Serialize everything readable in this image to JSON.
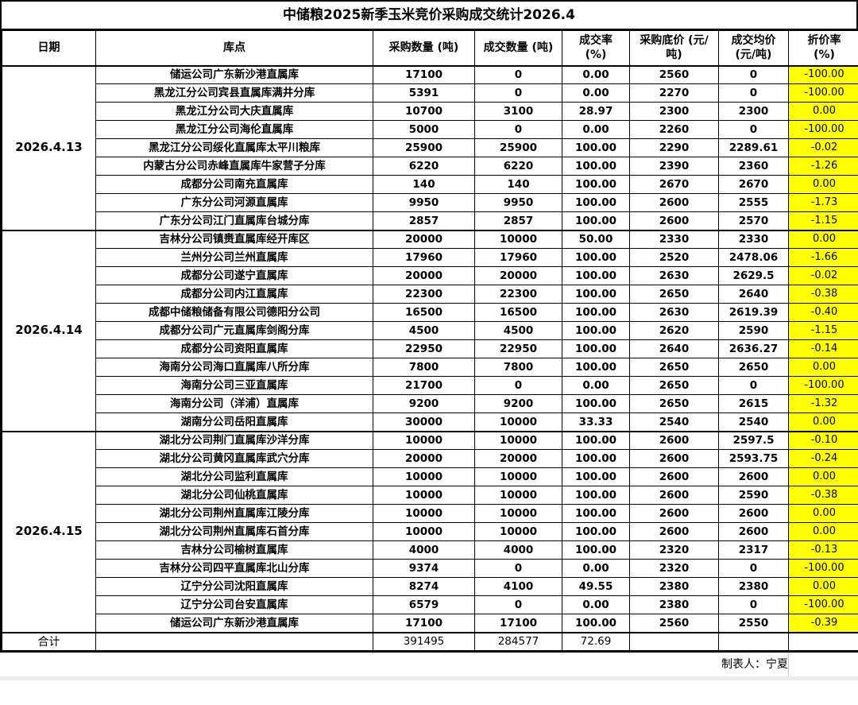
{
  "title": "中储粮2025新季玉米竞价采购成交统计2026.4",
  "colors": {
    "highlight_yellow": "#ffff00",
    "border_black": "#000000",
    "background_white": "#ffffff",
    "edge_gray": "#ececec"
  },
  "table": {
    "columns": [
      "日期",
      "库点",
      "采购数量 (吨)",
      "成交数量 (吨)",
      "成交率\n(%)",
      "采购底价 (元/\n吨)",
      "成交均价\n(元/吨)",
      "折价率\n(%)"
    ],
    "groups": [
      {
        "date": "2026.4.13",
        "rows": [
          [
            "储运公司广东新沙港直属库",
            "17100",
            "0",
            "0.00",
            "2560",
            "0",
            "-100.00"
          ],
          [
            "黑龙江分公司宾县直属库满井分库",
            "5391",
            "0",
            "0.00",
            "2270",
            "0",
            "-100.00"
          ],
          [
            "黑龙江分公司大庆直属库",
            "10700",
            "3100",
            "28.97",
            "2300",
            "2300",
            "0.00"
          ],
          [
            "黑龙江分公司海伦直属库",
            "5000",
            "0",
            "0.00",
            "2260",
            "0",
            "-100.00"
          ],
          [
            "黑龙江分公司绥化直属库太平川粮库",
            "25900",
            "25900",
            "100.00",
            "2290",
            "2289.61",
            "-0.02"
          ],
          [
            "内蒙古分公司赤峰直属库牛家营子分库",
            "6220",
            "6220",
            "100.00",
            "2390",
            "2360",
            "-1.26"
          ],
          [
            "成都分公司南充直属库",
            "140",
            "140",
            "100.00",
            "2670",
            "2670",
            "0.00"
          ],
          [
            "广东分公司河源直属库",
            "9950",
            "9950",
            "100.00",
            "2600",
            "2555",
            "-1.73"
          ],
          [
            "广东分公司江门直属库台城分库",
            "2857",
            "2857",
            "100.00",
            "2600",
            "2570",
            "-1.15"
          ]
        ]
      },
      {
        "date": "2026.4.14",
        "rows": [
          [
            "吉林分公司镇赉直属库经开库区",
            "20000",
            "10000",
            "50.00",
            "2330",
            "2330",
            "0.00"
          ],
          [
            "兰州分公司兰州直属库",
            "17960",
            "17960",
            "100.00",
            "2520",
            "2478.06",
            "-1.66"
          ],
          [
            "成都分公司遂宁直属库",
            "20000",
            "20000",
            "100.00",
            "2630",
            "2629.5",
            "-0.02"
          ],
          [
            "成都分公司内江直属库",
            "22300",
            "22300",
            "100.00",
            "2650",
            "2640",
            "-0.38"
          ],
          [
            "成都中储粮储备有限公司德阳分公司",
            "16500",
            "16500",
            "100.00",
            "2630",
            "2619.39",
            "-0.40"
          ],
          [
            "成都分公司广元直属库剑阁分库",
            "4500",
            "4500",
            "100.00",
            "2620",
            "2590",
            "-1.15"
          ],
          [
            "成都分公司资阳直属库",
            "22950",
            "22950",
            "100.00",
            "2640",
            "2636.27",
            "-0.14"
          ],
          [
            "海南分公司海口直属库八所分库",
            "7800",
            "7800",
            "100.00",
            "2650",
            "2650",
            "0.00"
          ],
          [
            "海南分公司三亚直属库",
            "21700",
            "0",
            "0.00",
            "2650",
            "0",
            "-100.00"
          ],
          [
            "海南分公司（洋浦）直属库",
            "9200",
            "9200",
            "100.00",
            "2650",
            "2615",
            "-1.32"
          ],
          [
            "湖南分公司岳阳直属库",
            "30000",
            "10000",
            "33.33",
            "2540",
            "2540",
            "0.00"
          ]
        ]
      },
      {
        "date": "2026.4.15",
        "rows": [
          [
            "湖北分公司荆门直属库沙洋分库",
            "10000",
            "10000",
            "100.00",
            "2600",
            "2597.5",
            "-0.10"
          ],
          [
            "湖北分公司黄冈直属库武穴分库",
            "20000",
            "20000",
            "100.00",
            "2600",
            "2593.75",
            "-0.24"
          ],
          [
            "湖北分公司监利直属库",
            "10000",
            "10000",
            "100.00",
            "2600",
            "2600",
            "0.00"
          ],
          [
            "湖北分公司仙桃直属库",
            "10000",
            "10000",
            "100.00",
            "2600",
            "2590",
            "-0.38"
          ],
          [
            "湖北分公司荆州直属库江陵分库",
            "10000",
            "10000",
            "100.00",
            "2600",
            "2600",
            "0.00"
          ],
          [
            "湖北分公司荆州直属库石首分库",
            "10000",
            "10000",
            "100.00",
            "2600",
            "2600",
            "0.00"
          ],
          [
            "吉林分公司榆树直属库",
            "4000",
            "4000",
            "100.00",
            "2320",
            "2317",
            "-0.13"
          ],
          [
            "吉林分公司四平直属库北山分库",
            "9374",
            "0",
            "0.00",
            "2320",
            "0",
            "-100.00"
          ],
          [
            "辽宁分公司沈阳直属库",
            "8274",
            "4100",
            "49.55",
            "2380",
            "2380",
            "0.00"
          ],
          [
            "辽宁分公司台安直属库",
            "6579",
            "0",
            "0.00",
            "2380",
            "0",
            "-100.00"
          ],
          [
            "储运公司广东新沙港直属库",
            "17100",
            "17100",
            "100.00",
            "2560",
            "2550",
            "-0.39"
          ]
        ]
      }
    ],
    "totals": {
      "label": "合计",
      "purchase_qty": "391495",
      "deal_qty": "284577",
      "deal_rate": "72.69"
    }
  },
  "footer": {
    "creator": "制表人：宁夏"
  }
}
